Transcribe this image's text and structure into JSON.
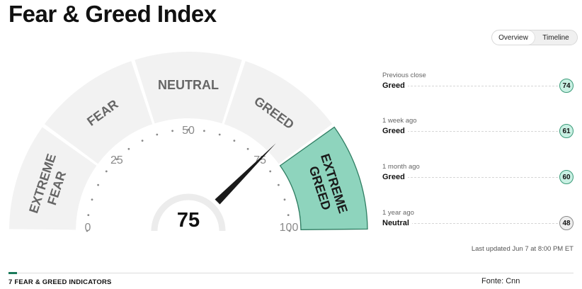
{
  "page": {
    "title": "Fear & Greed Index"
  },
  "view_toggle": {
    "overview": "Overview",
    "timeline": "Timeline",
    "active": "overview"
  },
  "gauge": {
    "value": 75,
    "value_text": "75",
    "min": 0,
    "max": 100,
    "zones": [
      {
        "lines": [
          "EXTREME",
          "FEAR"
        ],
        "active": false
      },
      {
        "lines": [
          "FEAR"
        ],
        "active": false
      },
      {
        "lines": [
          "NEUTRAL"
        ],
        "active": false
      },
      {
        "lines": [
          "GREED"
        ],
        "active": false
      },
      {
        "lines": [
          "EXTREME",
          "GREED"
        ],
        "active": true
      }
    ],
    "scale_labels": [
      "0",
      "25",
      "50",
      "75",
      "100"
    ],
    "colors": {
      "inactive": "#f2f2f2",
      "active": "#8ed4bd",
      "active_stroke": "#2f7d62",
      "label_inactive": "#666666",
      "label_active": "#1a1a1a",
      "needle": "#1a1a1a"
    }
  },
  "history": [
    {
      "label": "Previous close",
      "rating": "Greed",
      "value": "74",
      "type": "greed"
    },
    {
      "label": "1 week ago",
      "rating": "Greed",
      "value": "61",
      "type": "greed"
    },
    {
      "label": "1 month ago",
      "rating": "Greed",
      "value": "60",
      "type": "greed"
    },
    {
      "label": "1 year ago",
      "rating": "Neutral",
      "value": "48",
      "type": "neutral"
    }
  ],
  "last_updated": "Last updated Jun 7 at 8:00 PM ET",
  "footer": {
    "indicators_heading": "7 FEAR & GREED INDICATORS",
    "source": "Fonte: Cnn"
  }
}
